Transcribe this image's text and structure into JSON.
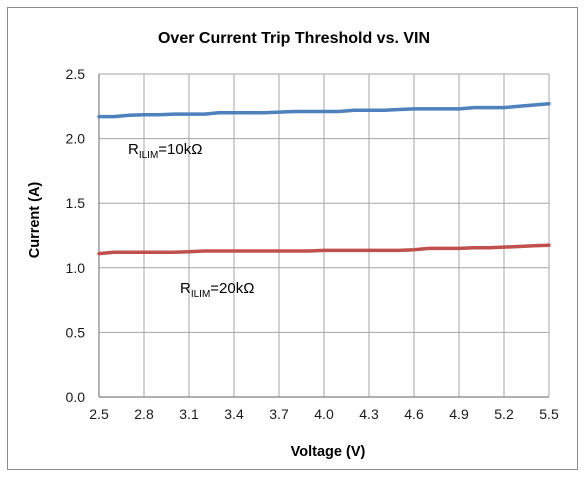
{
  "chart_data": {
    "type": "line",
    "title": "Over Current Trip Threshold vs. VIN",
    "xlabel": "Voltage (V)",
    "ylabel": "Current (A)",
    "xlim": [
      2.5,
      5.5
    ],
    "ylim": [
      0,
      2.5
    ],
    "xticks": [
      "2.5",
      "2.8",
      "3.1",
      "3.4",
      "3.7",
      "4.0",
      "4.3",
      "4.6",
      "4.9",
      "5.2",
      "5.5"
    ],
    "yticks": [
      "0.0",
      "0.5",
      "1.0",
      "1.5",
      "2.0",
      "2.5"
    ],
    "grid": true,
    "legend": "none",
    "series": [
      {
        "label_main": "R",
        "label_sub": "ILIM",
        "label_rest": "=10kΩ",
        "color": "#4f81bd",
        "x": [
          2.5,
          2.6,
          2.7,
          2.8,
          2.9,
          3.0,
          3.1,
          3.2,
          3.3,
          3.4,
          3.5,
          3.6,
          3.7,
          3.8,
          3.9,
          4.0,
          4.1,
          4.2,
          4.3,
          4.4,
          4.5,
          4.6,
          4.7,
          4.8,
          4.9,
          5.0,
          5.1,
          5.2,
          5.3,
          5.4,
          5.5
        ],
        "y": [
          2.17,
          2.17,
          2.18,
          2.185,
          2.185,
          2.19,
          2.19,
          2.19,
          2.2,
          2.2,
          2.2,
          2.2,
          2.205,
          2.21,
          2.21,
          2.21,
          2.21,
          2.22,
          2.22,
          2.22,
          2.225,
          2.23,
          2.23,
          2.23,
          2.23,
          2.24,
          2.24,
          2.24,
          2.25,
          2.26,
          2.27
        ]
      },
      {
        "label_main": "R",
        "label_sub": "ILIM",
        "label_rest": "=20kΩ",
        "color": "#c0504d",
        "x": [
          2.5,
          2.6,
          2.7,
          2.8,
          2.9,
          3.0,
          3.1,
          3.2,
          3.3,
          3.4,
          3.5,
          3.6,
          3.7,
          3.8,
          3.9,
          4.0,
          4.1,
          4.2,
          4.3,
          4.4,
          4.5,
          4.6,
          4.7,
          4.8,
          4.9,
          5.0,
          5.1,
          5.2,
          5.3,
          5.4,
          5.5
        ],
        "y": [
          1.11,
          1.12,
          1.12,
          1.12,
          1.12,
          1.12,
          1.125,
          1.13,
          1.13,
          1.13,
          1.13,
          1.13,
          1.13,
          1.13,
          1.13,
          1.135,
          1.135,
          1.135,
          1.135,
          1.135,
          1.135,
          1.14,
          1.15,
          1.15,
          1.15,
          1.155,
          1.155,
          1.16,
          1.165,
          1.17,
          1.175
        ]
      }
    ]
  }
}
